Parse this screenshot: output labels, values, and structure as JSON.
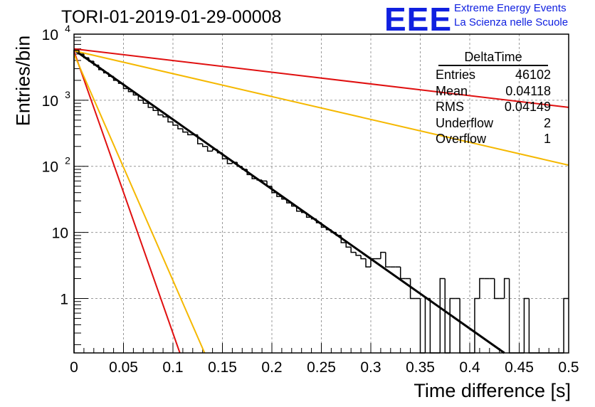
{
  "header": {
    "title": "TORI-01-2019-01-29-00008",
    "logo": "EEE",
    "brand_line1": "Extreme Energy Events",
    "brand_line2": "La Scienza nelle Scuole"
  },
  "stats": {
    "title": "DeltaTime",
    "rows": [
      {
        "label": "Entries",
        "value": "46102"
      },
      {
        "label": "Mean",
        "value": "0.04118"
      },
      {
        "label": "RMS",
        "value": "0.04149"
      },
      {
        "label": "Underflow",
        "value": "2"
      },
      {
        "label": "Overflow",
        "value": "1"
      }
    ]
  },
  "chart_data": {
    "type": "line",
    "title": "TORI-01-2019-01-29-00008",
    "xlabel": "Time difference [s]",
    "ylabel": "Entries/bin",
    "xlim": [
      0,
      0.5
    ],
    "ylim": [
      0.15,
      10000
    ],
    "yscale": "log",
    "grid": true,
    "x_ticks": [
      0,
      0.05,
      0.1,
      0.15,
      0.2,
      0.25,
      0.3,
      0.35,
      0.4,
      0.45,
      0.5
    ],
    "x_tick_labels": [
      "0",
      "0.05",
      "0.1",
      "0.15",
      "0.2",
      "0.25",
      "0.3",
      "0.35",
      "0.4",
      "0.45",
      "0.5"
    ],
    "y_ticks": [
      1,
      10,
      100,
      1000,
      10000
    ],
    "y_tick_labels": [
      "1",
      "10",
      "10^2",
      "10^3",
      "10^4"
    ],
    "histogram": {
      "name": "DeltaTime",
      "bin_width": 0.005,
      "values": [
        5700,
        5000,
        4400,
        3900,
        3400,
        2900,
        2600,
        2300,
        2000,
        1800,
        1500,
        1350,
        1200,
        1000,
        900,
        780,
        700,
        600,
        560,
        470,
        420,
        370,
        330,
        300,
        300,
        220,
        200,
        170,
        180,
        160,
        130,
        110,
        115,
        100,
        90,
        75,
        65,
        62,
        60,
        50,
        40,
        35,
        32,
        28,
        25,
        21,
        20,
        17,
        16,
        14,
        12,
        11,
        10,
        9,
        7,
        6,
        5,
        4.5,
        4,
        3,
        4,
        4,
        5,
        3,
        3,
        3,
        2,
        2,
        1,
        1,
        0,
        1,
        0,
        0,
        2,
        0,
        1,
        1,
        0,
        0,
        0,
        1,
        2,
        2,
        2,
        1,
        1,
        2,
        0,
        0,
        0,
        1,
        0,
        0,
        0,
        0,
        0,
        0,
        0,
        1
      ]
    },
    "fits": [
      {
        "color": "#000000",
        "x": [
          0,
          0.435
        ],
        "y": [
          5800,
          0.15
        ]
      },
      {
        "color": "#e01010",
        "x": [
          0,
          0.5
        ],
        "y": [
          6000,
          780
        ]
      },
      {
        "color": "#f5b800",
        "x": [
          0,
          0.5
        ],
        "y": [
          5600,
          104
        ]
      },
      {
        "color": "#e01010",
        "x": [
          0,
          0.107
        ],
        "y": [
          5500,
          0.15
        ]
      },
      {
        "color": "#f5b800",
        "x": [
          0,
          0.132
        ],
        "y": [
          5000,
          0.15
        ]
      }
    ]
  }
}
